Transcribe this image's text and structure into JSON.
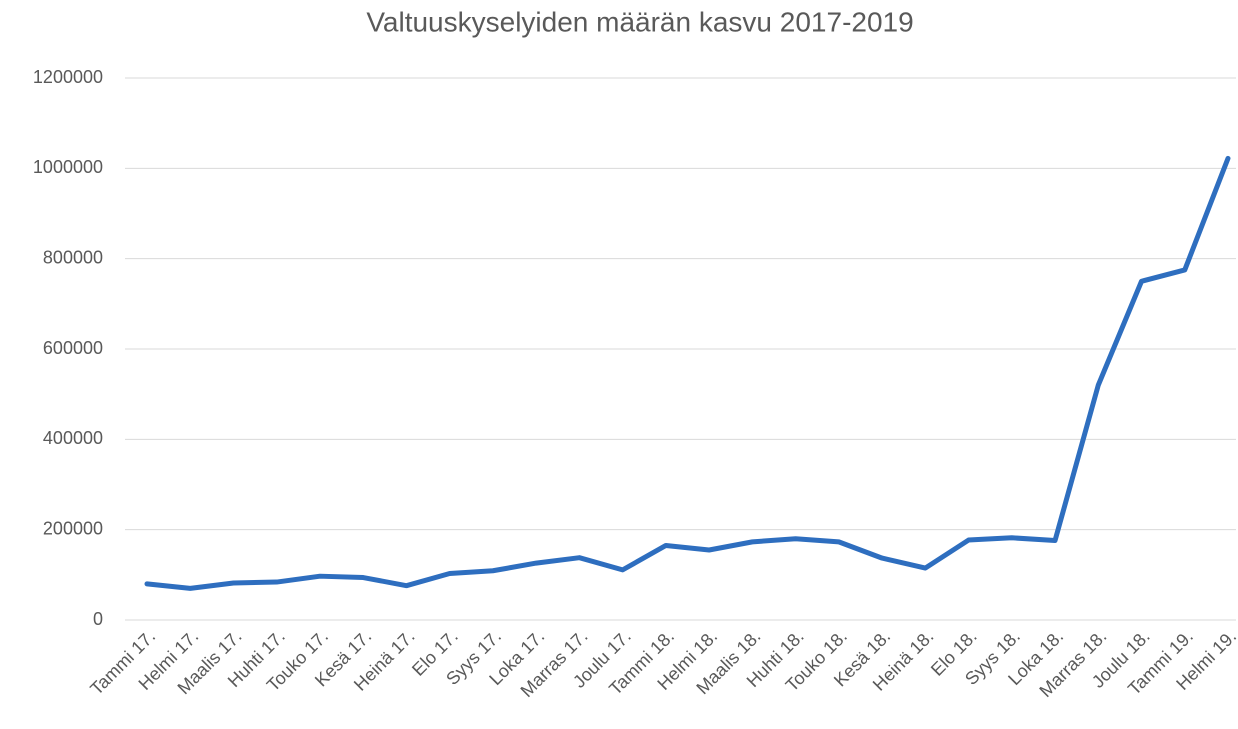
{
  "chart_data": {
    "type": "line",
    "title": "Valtuuskyselyiden määrän kasvu 2017-2019",
    "categories": [
      "Tammi 17.",
      "Helmi 17.",
      "Maalis 17.",
      "Huhti 17.",
      "Touko 17.",
      "Kesä 17.",
      "Heinä 17.",
      "Elo 17.",
      "Syys 17.",
      "Loka 17.",
      "Marras 17.",
      "Joulu 17.",
      "Tammi 18.",
      "Helmi 18.",
      "Maalis 18.",
      "Huhti 18.",
      "Touko 18.",
      "Kesä 18.",
      "Heinä 18.",
      "Elo 18.",
      "Syys 18.",
      "Loka 18.",
      "Marras 18.",
      "Joulu 18.",
      "Tammi 19.",
      "Helmi 19."
    ],
    "values": [
      80000,
      70000,
      82000,
      84000,
      97000,
      94000,
      76000,
      103000,
      109000,
      126000,
      138000,
      111000,
      165000,
      155000,
      173000,
      180000,
      173000,
      137000,
      115000,
      177000,
      182000,
      176000,
      520000,
      750000,
      775000,
      1022000
    ],
    "color": "#2e6ebf",
    "ylim": [
      0,
      1200000
    ],
    "yticks": [
      0,
      200000,
      400000,
      600000,
      800000,
      1000000,
      1200000
    ],
    "grid": true
  }
}
